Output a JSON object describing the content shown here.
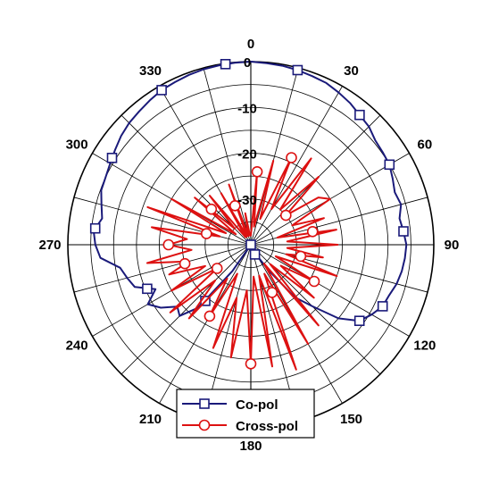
{
  "chart_data": {
    "type": "polar-line",
    "angle_unit": "degrees",
    "angle_zero": "top",
    "angle_direction": "clockwise",
    "angle_ticks": [
      "0",
      "30",
      "60",
      "90",
      "120",
      "150",
      "180",
      "210",
      "240",
      "270",
      "300",
      "330"
    ],
    "radial_ticks": [
      "0",
      "-10",
      "-20",
      "-30"
    ],
    "r_range": [
      -40,
      0
    ],
    "grid": true,
    "legend_position": "bottom-center",
    "series": [
      {
        "name": "Co-pol",
        "color": "#1a1a7a",
        "marker": "square",
        "points": [
          [
            -90,
            -6.0
          ],
          [
            -85,
            -5.5
          ],
          [
            -80,
            -7.0
          ],
          [
            -75,
            -6.2
          ],
          [
            -70,
            -5.2
          ],
          [
            -65,
            -5.0
          ],
          [
            -60,
            -4.5
          ],
          [
            -55,
            -3.8
          ],
          [
            -50,
            -3.0
          ],
          [
            -45,
            -2.4
          ],
          [
            -40,
            -2.0
          ],
          [
            -35,
            -1.5
          ],
          [
            -30,
            -1.0
          ],
          [
            -25,
            -0.8
          ],
          [
            -20,
            -0.5
          ],
          [
            -15,
            -0.3
          ],
          [
            -10,
            -0.2
          ],
          [
            -5,
            -0.1
          ],
          [
            0,
            0
          ],
          [
            5,
            -0.2
          ],
          [
            10,
            -0.3
          ],
          [
            15,
            -0.5
          ],
          [
            20,
            -0.8
          ],
          [
            25,
            -1.0
          ],
          [
            30,
            -1.6
          ],
          [
            35,
            -2.2
          ],
          [
            40,
            -3.0
          ],
          [
            45,
            -3.5
          ],
          [
            50,
            -4.5
          ],
          [
            55,
            -4.8
          ],
          [
            60,
            -5.0
          ],
          [
            65,
            -5.8
          ],
          [
            70,
            -6.5
          ],
          [
            75,
            -6.0
          ],
          [
            80,
            -7.0
          ],
          [
            85,
            -6.5
          ],
          [
            90,
            -6.0
          ],
          [
            95,
            -6.2
          ],
          [
            100,
            -6.5
          ],
          [
            105,
            -7.0
          ],
          [
            110,
            -7.8
          ],
          [
            115,
            -8.2
          ],
          [
            120,
            -9.5
          ],
          [
            125,
            -11
          ],
          [
            130,
            -15
          ],
          [
            135,
            -21
          ],
          [
            140,
            -25
          ],
          [
            145,
            -33
          ],
          [
            150,
            -37
          ],
          [
            180,
            -40
          ],
          [
            210,
            -40
          ],
          [
            215,
            -33
          ],
          [
            220,
            -22
          ],
          [
            225,
            -18
          ],
          [
            230,
            -19
          ],
          [
            235,
            -16
          ],
          [
            240,
            -14
          ],
          [
            245,
            -17
          ],
          [
            250,
            -13
          ],
          [
            255,
            -12
          ],
          [
            260,
            -11
          ],
          [
            265,
            -7.0
          ],
          [
            270,
            -6.0
          ]
        ],
        "markers": [
          -84,
          -58,
          -30,
          -8,
          15,
          40,
          60,
          85,
          115,
          125,
          157,
          199,
          219,
          247
        ]
      },
      {
        "name": "Cross-pol",
        "color": "#dd1111",
        "marker": "circle",
        "points": [
          [
            -90,
            -22
          ],
          [
            -85,
            -26
          ],
          [
            -80,
            -18
          ],
          [
            -75,
            -33
          ],
          [
            -70,
            -16
          ],
          [
            -65,
            -34
          ],
          [
            -60,
            -20
          ],
          [
            -55,
            -36
          ],
          [
            -50,
            -24
          ],
          [
            -45,
            -35
          ],
          [
            -40,
            -26
          ],
          [
            -35,
            -38
          ],
          [
            -30,
            -27
          ],
          [
            -25,
            -38
          ],
          [
            -20,
            -26
          ],
          [
            -15,
            -38
          ],
          [
            -10,
            -33
          ],
          [
            -5,
            -38
          ],
          [
            0,
            -38
          ],
          [
            5,
            -24
          ],
          [
            10,
            -36
          ],
          [
            15,
            -21
          ],
          [
            20,
            -34
          ],
          [
            25,
            -19
          ],
          [
            30,
            -31
          ],
          [
            35,
            -17
          ],
          [
            40,
            -30
          ],
          [
            45,
            -19
          ],
          [
            50,
            -30
          ],
          [
            55,
            -22
          ],
          [
            60,
            -20
          ],
          [
            65,
            -30
          ],
          [
            70,
            -23
          ],
          [
            75,
            -34
          ],
          [
            80,
            -21
          ],
          [
            85,
            -32
          ],
          [
            90,
            -21
          ],
          [
            95,
            -32
          ],
          [
            100,
            -24
          ],
          [
            105,
            -32
          ],
          [
            110,
            -20
          ],
          [
            115,
            -34
          ],
          [
            120,
            -24
          ],
          [
            125,
            -32
          ],
          [
            130,
            -22
          ],
          [
            135,
            -34
          ],
          [
            140,
            -17
          ],
          [
            145,
            -35
          ],
          [
            150,
            -15
          ],
          [
            155,
            -33
          ],
          [
            160,
            -11
          ],
          [
            165,
            -33
          ],
          [
            170,
            -13
          ],
          [
            175,
            -33
          ],
          [
            180,
            -14
          ],
          [
            185,
            -30
          ],
          [
            190,
            -15
          ],
          [
            195,
            -28
          ],
          [
            200,
            -16
          ],
          [
            205,
            -33
          ],
          [
            210,
            -22
          ],
          [
            215,
            -31
          ],
          [
            220,
            -19
          ],
          [
            225,
            -29
          ],
          [
            230,
            -17
          ],
          [
            235,
            -31
          ],
          [
            240,
            -20
          ],
          [
            245,
            -29
          ],
          [
            250,
            -21
          ],
          [
            255,
            -26
          ],
          [
            260,
            -17
          ],
          [
            265,
            -27
          ],
          [
            270,
            -22
          ]
        ],
        "markers": [
          -76,
          -48,
          -22,
          5,
          25,
          50,
          78,
          103,
          120,
          156,
          180,
          210,
          235,
          254,
          270
        ]
      }
    ]
  }
}
